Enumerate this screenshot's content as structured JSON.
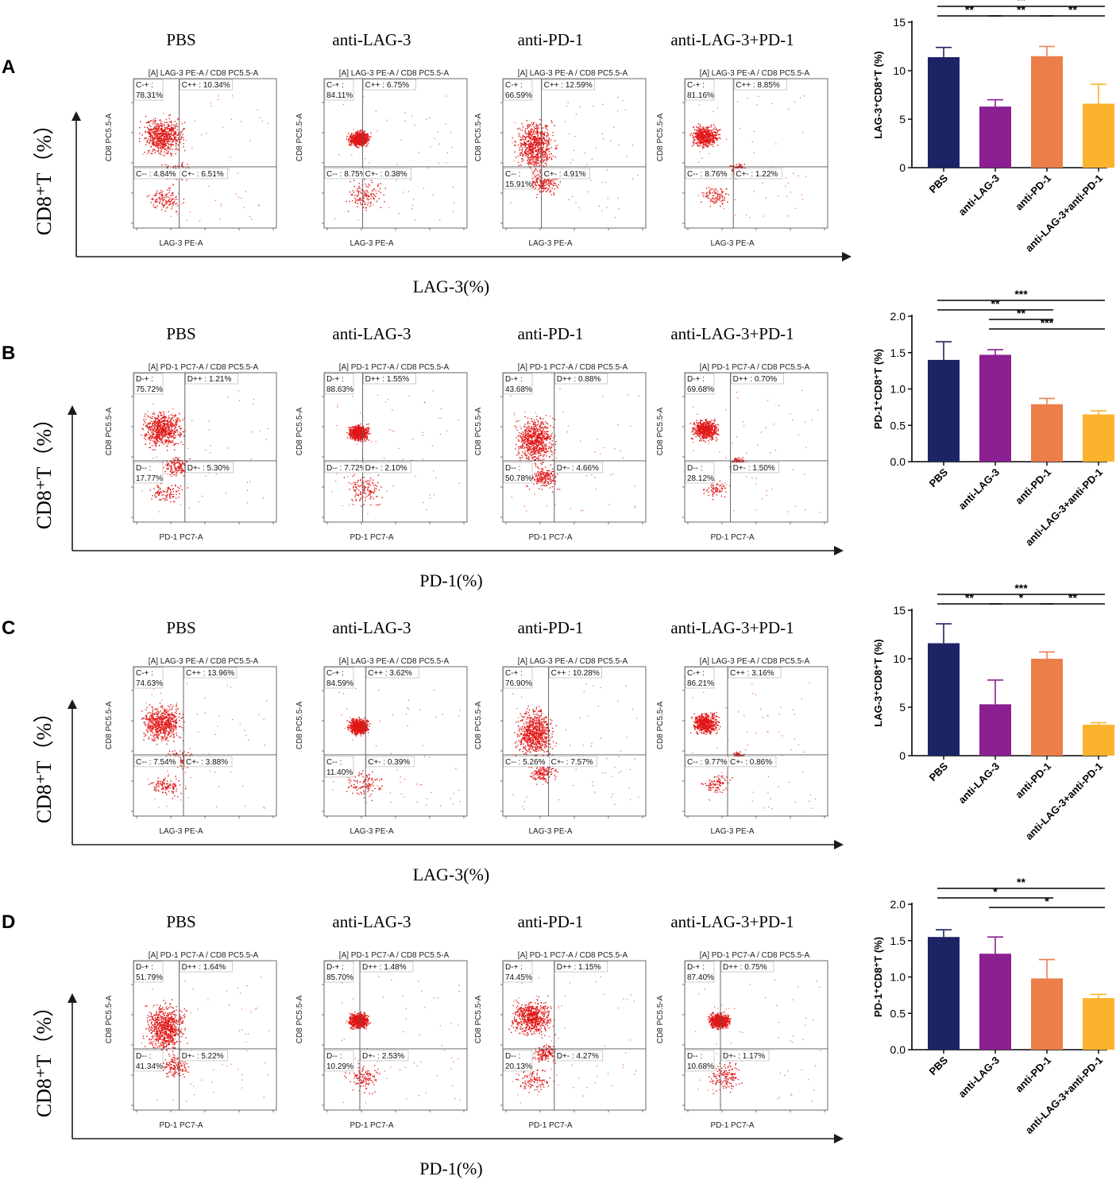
{
  "colors": {
    "pbs": "#1c2466",
    "anti_lag3": "#8c1f91",
    "anti_pd1": "#ec7e4a",
    "combo": "#fbb32d",
    "dots": "#e01818",
    "axis": "#1a1a1a"
  },
  "chart_data": [
    {
      "panel": "A",
      "type": "bar",
      "group_titles": [
        "PBS",
        "anti-LAG-3",
        "anti-PD-1",
        "anti-LAG-3+PD-1"
      ],
      "flow_axis_y": "CD8⁺T（%）",
      "flow_axis_x": "LAG-3(%)",
      "flow_plots": [
        {
          "title": "[A] LAG-3 PE-A / CD8 PC5.5-A",
          "xlabel": "LAG-3 PE-A",
          "ylabel": "CD8 PC5.5-A",
          "q_ul": "C-+ :",
          "q_ul_val": "78.31%",
          "q_ur": "C++ : 10.34%",
          "q_ll": "C-- : 4.84%",
          "q_ll_val": "",
          "q_lr": "C+- : 6.51%"
        },
        {
          "title": "[A] LAG-3 PE-A / CD8 PC5.5-A",
          "xlabel": "LAG-3 PE-A",
          "ylabel": "CD8 PC5.5-A",
          "q_ul": "C-+ :",
          "q_ul_val": "84.11%",
          "q_ur": "C++ : 6.75%",
          "q_ll": "C-- : 8.75%",
          "q_ll_val": "",
          "q_lr": "C+- : 0.38%"
        },
        {
          "title": "[A] LAG-3 PE-A / CD8 PC5.5-A",
          "xlabel": "LAG-3 PE-A",
          "ylabel": "CD8 PC5.5-A",
          "q_ul": "C-+ :",
          "q_ul_val": "66.59%",
          "q_ur": "C++ : 12.59%",
          "q_ll": "C-- :",
          "q_ll_val": "15.91%",
          "q_lr": "C+- : 4.91%"
        },
        {
          "title": "[A] LAG-3 PE-A / CD8 PC5.5-A",
          "xlabel": "LAG-3 PE-A",
          "ylabel": "CD8 PC5.5-A",
          "q_ul": "C-+ :",
          "q_ul_val": "81.16%",
          "q_ur": "C++ : 8.85%",
          "q_ll": "C-- : 8.76%",
          "q_ll_val": "",
          "q_lr": "C+- : 1.22%"
        }
      ],
      "categories": [
        "PBS",
        "anti-LAG-3",
        "anti-PD-1",
        "anti-LAG-3+anti-PD-1"
      ],
      "values": [
        11.4,
        6.3,
        11.5,
        6.6
      ],
      "errors": [
        1.0,
        0.7,
        1.0,
        2.0
      ],
      "ylabel": "LAG-3⁺CD8⁺T (%)",
      "ylim": [
        0,
        15
      ],
      "yticks": [
        "0",
        "5",
        "10",
        "15"
      ],
      "significance": [
        {
          "from": 0,
          "to": 3,
          "label": "**",
          "level": 1
        },
        {
          "from": 0,
          "to": 1,
          "label": "**",
          "level": 0
        },
        {
          "from": 1,
          "to": 2,
          "label": "**",
          "level": 0
        },
        {
          "from": 2,
          "to": 3,
          "label": "**",
          "level": 0
        }
      ]
    },
    {
      "panel": "B",
      "type": "bar",
      "group_titles": [
        "PBS",
        "anti-LAG-3",
        "anti-PD-1",
        "anti-LAG-3+PD-1"
      ],
      "flow_axis_y": "CD8⁺T（%）",
      "flow_axis_x": "PD-1(%)",
      "flow_plots": [
        {
          "title": "[A] PD-1 PC7-A / CD8 PC5.5-A",
          "xlabel": "PD-1 PC7-A",
          "ylabel": "CD8 PC5.5-A",
          "q_ul": "D-+ :",
          "q_ul_val": "75.72%",
          "q_ur": "D++ : 1.21%",
          "q_ll": "D-- :",
          "q_ll_val": "17.77%",
          "q_lr": "D+- : 5.30%"
        },
        {
          "title": "[A] PD-1 PC7-A / CD8 PC5.5-A",
          "xlabel": "PD-1 PC7-A",
          "ylabel": "CD8 PC5.5-A",
          "q_ul": "D-+ :",
          "q_ul_val": "88.63%",
          "q_ur": "D++ : 1.55%",
          "q_ll": "D-- : 7.72%",
          "q_ll_val": "",
          "q_lr": "D+- : 2.10%"
        },
        {
          "title": "[A] PD-1 PC7-A / CD8 PC5.5-A",
          "xlabel": "PD-1 PC7-A",
          "ylabel": "CD8 PC5.5-A",
          "q_ul": "D-+ :",
          "q_ul_val": "43.68%",
          "q_ur": "D++ : 0.88%",
          "q_ll": "D-- :",
          "q_ll_val": "50.78%",
          "q_lr": "D+- : 4.66%"
        },
        {
          "title": "[A] PD-1 PC7-A / CD8 PC5.5-A",
          "xlabel": "PD-1 PC7-A",
          "ylabel": "CD8 PC5.5-A",
          "q_ul": "D-+ :",
          "q_ul_val": "69.68%",
          "q_ur": "D++ : 0.70%",
          "q_ll": "D-- :",
          "q_ll_val": "28.12%",
          "q_lr": "D+- : 1.50%"
        }
      ],
      "categories": [
        "PBS",
        "anti-LAG-3",
        "anti-PD-1",
        "anti-LAG-3+anti-PD-1"
      ],
      "values": [
        1.4,
        1.47,
        0.79,
        0.65
      ],
      "errors": [
        0.25,
        0.07,
        0.08,
        0.05
      ],
      "ylabel": "PD-1⁺CD8⁺T (%)",
      "ylim": [
        0,
        2.0
      ],
      "yticks": [
        "0.0",
        "0.5",
        "1.0",
        "1.5",
        "2.0"
      ],
      "significance": [
        {
          "from": 0,
          "to": 3,
          "label": "***",
          "level": 3
        },
        {
          "from": 0,
          "to": 2,
          "label": "**",
          "level": 2
        },
        {
          "from": 1,
          "to": 2,
          "label": "**",
          "level": 1
        },
        {
          "from": 1,
          "to": 3,
          "label": "***",
          "level": 0
        }
      ]
    },
    {
      "panel": "C",
      "type": "bar",
      "group_titles": [
        "PBS",
        "anti-LAG-3",
        "anti-PD-1",
        "anti-LAG-3+PD-1"
      ],
      "flow_axis_y": "CD8⁺T（%）",
      "flow_axis_x": "LAG-3(%)",
      "flow_plots": [
        {
          "title": "[A] LAG-3 PE-A / CD8 PC5.5-A",
          "xlabel": "LAG-3 PE-A",
          "ylabel": "CD8 PC5.5-A",
          "q_ul": "C-+ :",
          "q_ul_val": "74.63%",
          "q_ur": "C++ : 13.96%",
          "q_ll": "C-- : 7.54%",
          "q_ll_val": "",
          "q_lr": "C+- : 3.88%"
        },
        {
          "title": "[A] LAG-3 PE-A / CD8 PC5.5-A",
          "xlabel": "LAG-3 PE-A",
          "ylabel": "CD8 PC5.5-A",
          "q_ul": "C-+ :",
          "q_ul_val": "84.59%",
          "q_ur": "C++ : 3.62%",
          "q_ll": "C-- :",
          "q_ll_val": "11.40%",
          "q_lr": "C+- : 0.39%"
        },
        {
          "title": "[A] LAG-3 PE-A / CD8 PC5.5-A",
          "xlabel": "LAG-3 PE-A",
          "ylabel": "CD8 PC5.5-A",
          "q_ul": "C-+ :",
          "q_ul_val": "76.90%",
          "q_ur": "C++ : 10.28%",
          "q_ll": "C-- : 5.26%",
          "q_ll_val": "",
          "q_lr": "C+- : 7.57%"
        },
        {
          "title": "[A] LAG-3 PE-A / CD8 PC5.5-A",
          "xlabel": "LAG-3 PE-A",
          "ylabel": "CD8 PC5.5-A",
          "q_ul": "C-+ :",
          "q_ul_val": "86.21%",
          "q_ur": "C++ : 3.16%",
          "q_ll": "C-- : 9.77%",
          "q_ll_val": "",
          "q_lr": "C+- : 0.86%"
        }
      ],
      "categories": [
        "PBS",
        "anti-LAG-3",
        "anti-PD-1",
        "anti-LAG-3+anti-PD-1"
      ],
      "values": [
        11.6,
        5.3,
        10.0,
        3.2
      ],
      "errors": [
        2.0,
        2.5,
        0.7,
        0.2
      ],
      "ylabel": "LAG-3⁺CD8⁺T (%)",
      "ylim": [
        0,
        15
      ],
      "yticks": [
        "0",
        "5",
        "10",
        "15"
      ],
      "significance": [
        {
          "from": 0,
          "to": 3,
          "label": "***",
          "level": 1
        },
        {
          "from": 0,
          "to": 1,
          "label": "**",
          "level": 0
        },
        {
          "from": 1,
          "to": 2,
          "label": "*",
          "level": 0
        },
        {
          "from": 2,
          "to": 3,
          "label": "**",
          "level": 0
        }
      ]
    },
    {
      "panel": "D",
      "type": "bar",
      "group_titles": [
        "PBS",
        "anti-LAG-3",
        "anti-PD-1",
        "anti-LAG-3+PD-1"
      ],
      "flow_axis_y": "CD8⁺T（%）",
      "flow_axis_x": "PD-1(%)",
      "flow_plots": [
        {
          "title": "[A] PD-1 PC7-A / CD8 PC5.5-A",
          "xlabel": "PD-1 PC7-A",
          "ylabel": "CD8 PC5.5-A",
          "q_ul": "D-+ :",
          "q_ul_val": "51.79%",
          "q_ur": "D++ : 1.64%",
          "q_ll": "D-- :",
          "q_ll_val": "41.34%",
          "q_lr": "D+- : 5.22%"
        },
        {
          "title": "[A] PD-1 PC7-A / CD8 PC5.5-A",
          "xlabel": "PD-1 PC7-A",
          "ylabel": "CD8 PC5.5-A",
          "q_ul": "D-+ :",
          "q_ul_val": "85.70%",
          "q_ur": "D++ : 1.48%",
          "q_ll": "D-- :",
          "q_ll_val": "10.29%",
          "q_lr": "D+- : 2.53%"
        },
        {
          "title": "[A] PD-1 PC7-A / CD8 PC5.5-A",
          "xlabel": "PD-1 PC7-A",
          "ylabel": "CD8 PC5.5-A",
          "q_ul": "D-+ :",
          "q_ul_val": "74.45%",
          "q_ur": "D++ : 1.15%",
          "q_ll": "D-- :",
          "q_ll_val": "20.13%",
          "q_lr": "D+- : 4.27%"
        },
        {
          "title": "[A] PD-1 PC7-A / CD8 PC5.5-A",
          "xlabel": "PD-1 PC7-A",
          "ylabel": "CD8 PC5.5-A",
          "q_ul": "D-+ :",
          "q_ul_val": "87.40%",
          "q_ur": "D++ : 0.75%",
          "q_ll": "D-- :",
          "q_ll_val": "10.68%",
          "q_lr": "D+- : 1.17%"
        }
      ],
      "categories": [
        "PBS",
        "anti-LAG-3",
        "anti-PD-1",
        "anti-LAG-3+anti-PD-1"
      ],
      "values": [
        1.55,
        1.32,
        0.98,
        0.71
      ],
      "errors": [
        0.1,
        0.23,
        0.26,
        0.05
      ],
      "ylabel": "PD-1⁺CD8⁺T (%)",
      "ylim": [
        0,
        2.0
      ],
      "yticks": [
        "0.0",
        "0.5",
        "1.0",
        "1.5",
        "2.0"
      ],
      "significance": [
        {
          "from": 0,
          "to": 3,
          "label": "**",
          "level": 2
        },
        {
          "from": 0,
          "to": 2,
          "label": "*",
          "level": 1
        },
        {
          "from": 1,
          "to": 3,
          "label": "*",
          "level": 0
        }
      ]
    }
  ]
}
